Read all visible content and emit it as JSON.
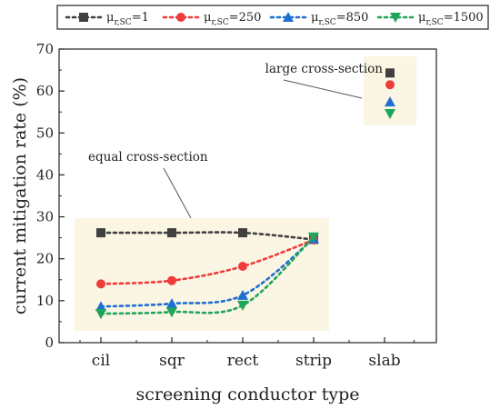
{
  "chart_data": {
    "type": "line",
    "xlabel": "screening conductor type",
    "ylabel": "current mitigation rate (%)",
    "categories": [
      "cil",
      "sqr",
      "rect",
      "strip",
      "slab"
    ],
    "ylim": [
      0,
      70
    ],
    "yticks": [
      0,
      10,
      20,
      30,
      40,
      50,
      60,
      70
    ],
    "grid": false,
    "legend_placement": "top",
    "series": [
      {
        "name_main": "μ",
        "name_sub": "r,SC",
        "name_value": "=1",
        "color": "#404040",
        "marker": "square",
        "values": [
          26.2,
          26.2,
          26.2,
          24.6,
          null
        ],
        "slab_value": 64.3
      },
      {
        "name_main": "μ",
        "name_sub": "r,SC",
        "name_value": "=250",
        "color": "#ee3b3b",
        "marker": "circle",
        "values": [
          14.0,
          14.8,
          18.2,
          24.5,
          null
        ],
        "slab_value": 61.5
      },
      {
        "name_main": "μ",
        "name_sub": "r,SC",
        "name_value": "=850",
        "color": "#1f6fd1",
        "marker": "triangle-up",
        "values": [
          8.6,
          9.3,
          11.3,
          24.8,
          null
        ],
        "slab_value": 57.4
      },
      {
        "name_main": "μ",
        "name_sub": "r,SC",
        "name_value": "=1500",
        "color": "#1fa55a",
        "marker": "triangle-down",
        "values": [
          6.9,
          7.3,
          8.9,
          25.2,
          null
        ],
        "slab_value": 54.6
      }
    ],
    "annotations": [
      {
        "text": "large cross-section"
      },
      {
        "text": "equal cross-section"
      }
    ],
    "highlight_color": "#fbf5e3"
  }
}
